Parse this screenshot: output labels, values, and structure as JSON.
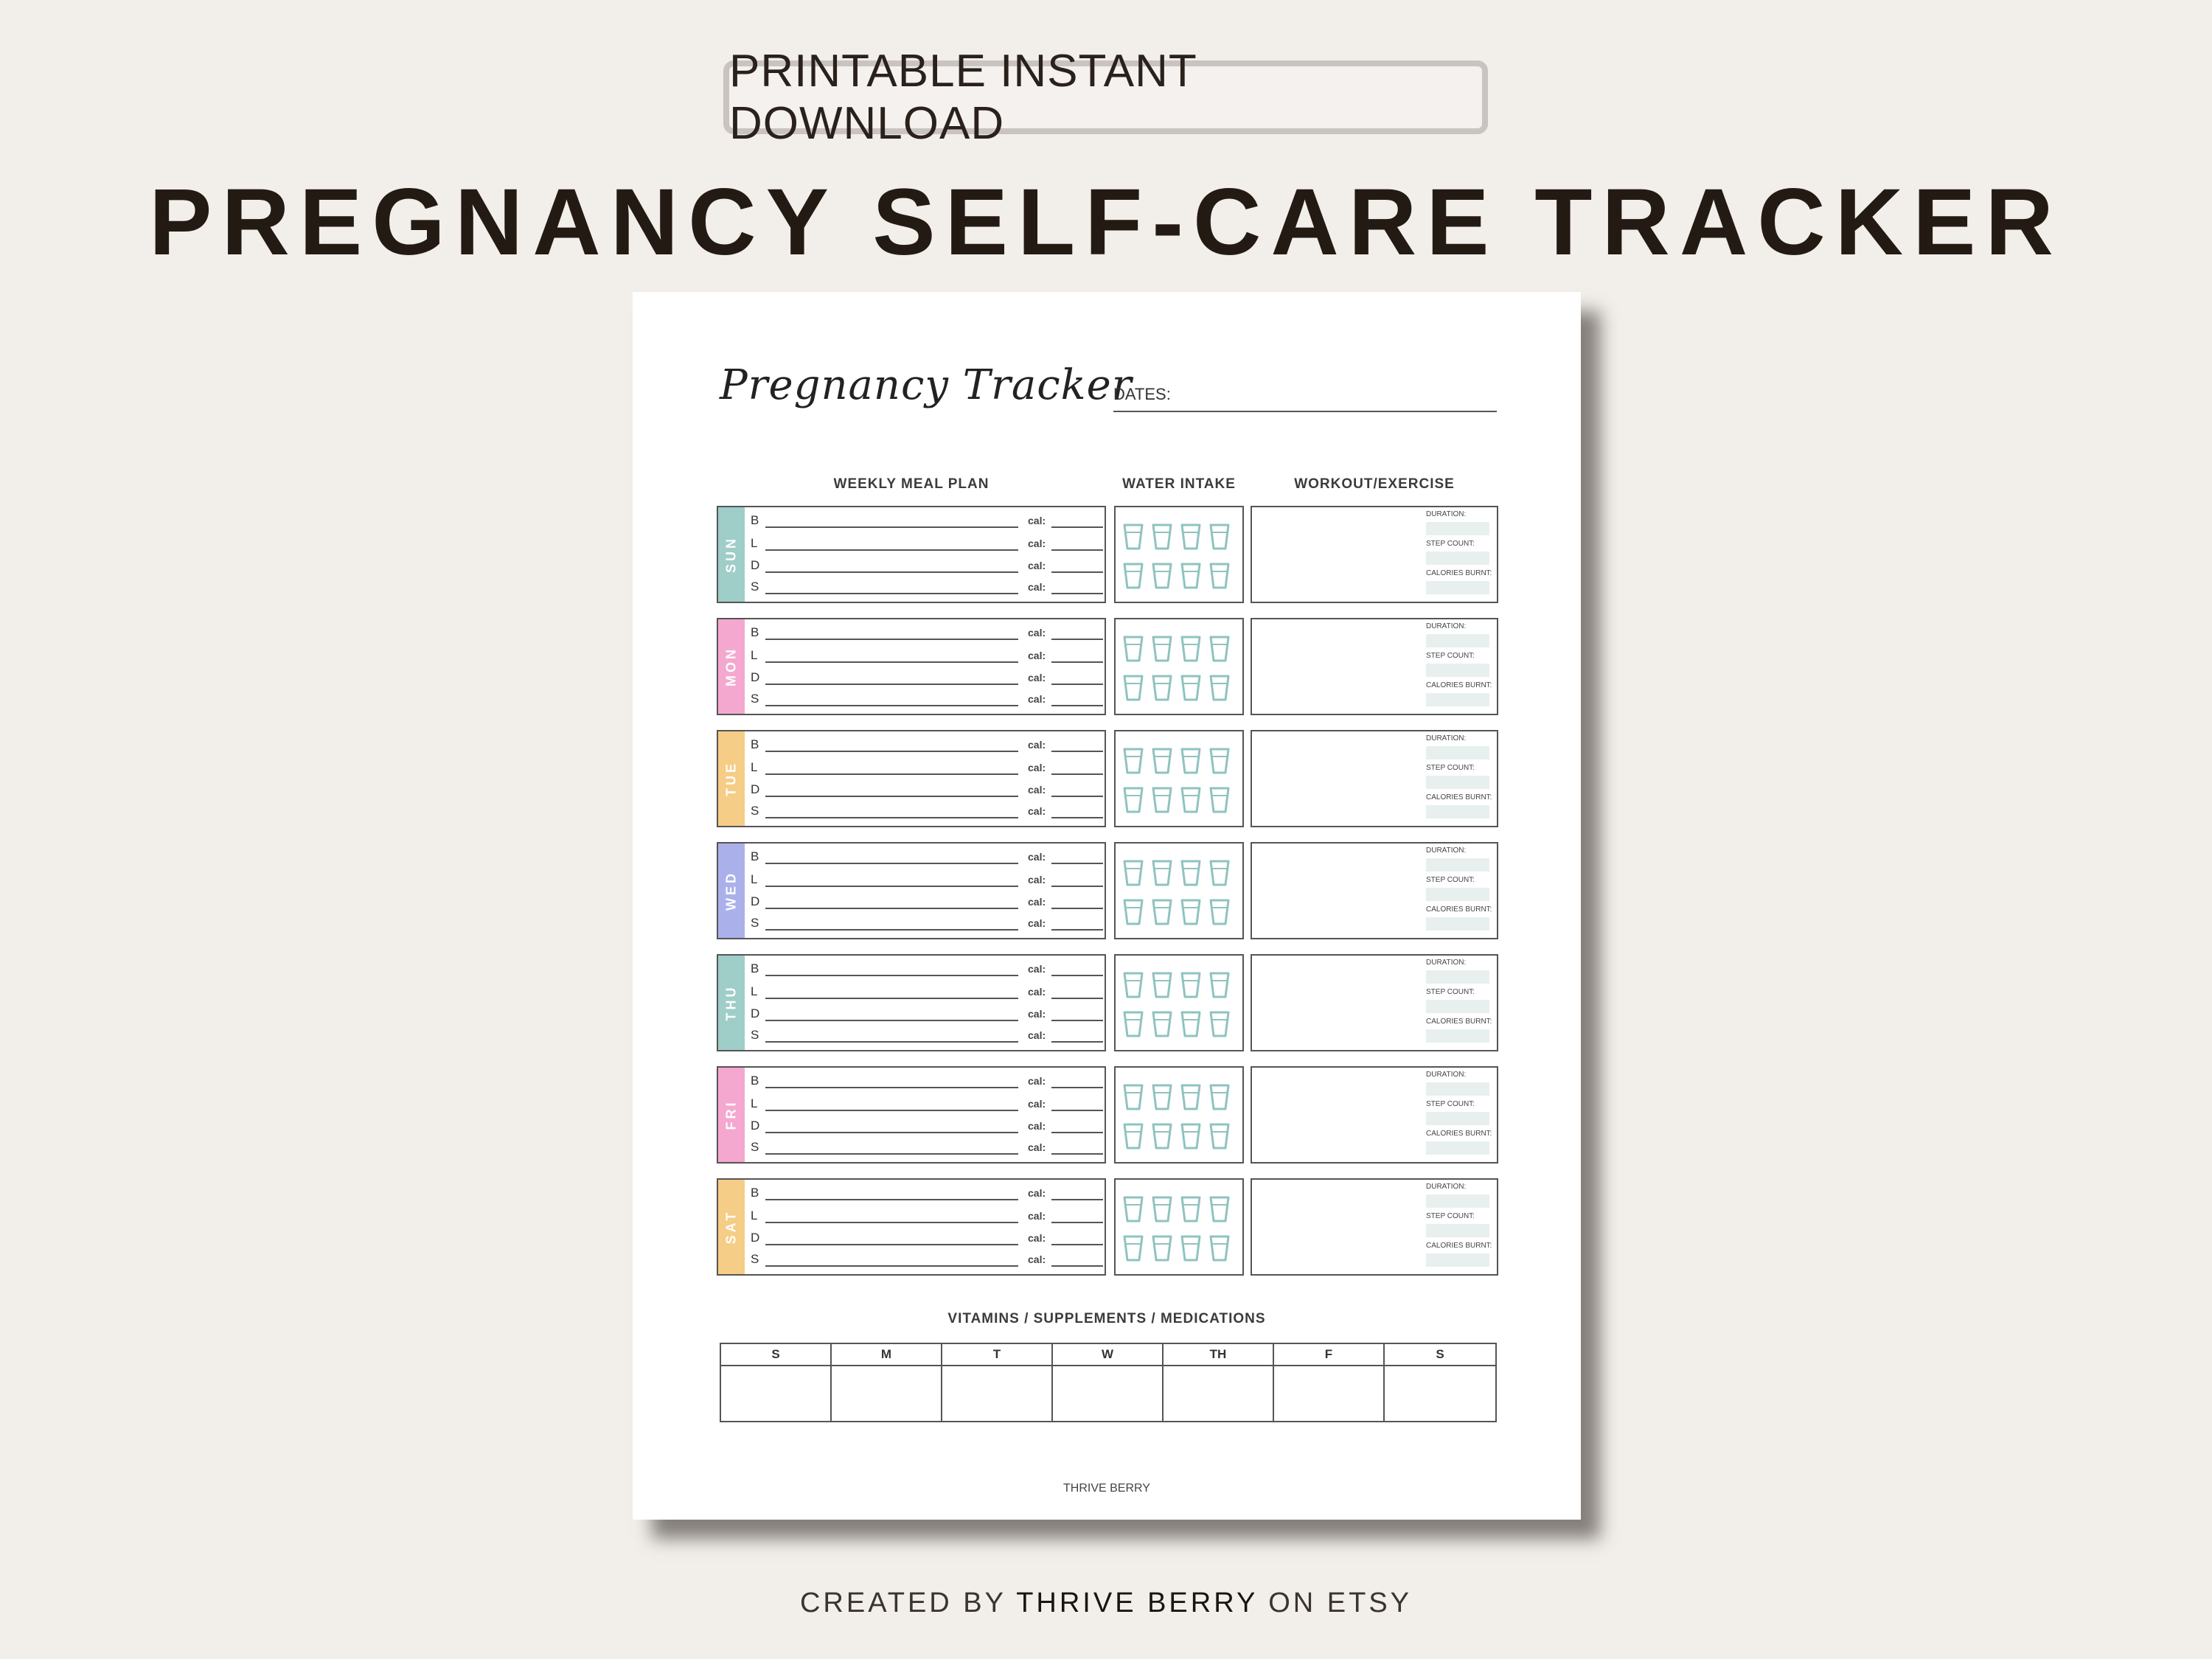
{
  "badge_text": "PRINTABLE INSTANT DOWNLOAD",
  "main_title": "PREGNANCY SELF-CARE TRACKER",
  "footer": {
    "prefix": "CREATED BY",
    "brand": "THRIVE BERRY",
    "suffix": "ON ETSY"
  },
  "tracker": {
    "script_title": "Pregnancy Tracker",
    "dates_label": "DATES:",
    "columns": {
      "meal": "WEEKLY MEAL PLAN",
      "water": "WATER INTAKE",
      "workout": "WORKOUT/EXERCISE"
    },
    "meal_letters": [
      "B",
      "L",
      "D",
      "S"
    ],
    "cal_label": "cal:",
    "workout_labels": [
      "DURATION:",
      "STEP COUNT:",
      "CALORIES BURNT:"
    ],
    "days": [
      {
        "label": "SUN",
        "color": "#9fcdc8"
      },
      {
        "label": "MON",
        "color": "#f4a8cf"
      },
      {
        "label": "TUE",
        "color": "#f6cd86"
      },
      {
        "label": "WED",
        "color": "#aab1ea"
      },
      {
        "label": "THU",
        "color": "#9fcdc8"
      },
      {
        "label": "FRI",
        "color": "#f4a8cf"
      },
      {
        "label": "SAT",
        "color": "#f6cd86"
      }
    ],
    "water_cups_per_day": 8,
    "cup_color": "#8fc3c0",
    "vitamins_title": "VITAMINS / SUPPLEMENTS / MEDICATIONS",
    "vitamin_days": [
      "S",
      "M",
      "T",
      "W",
      "TH",
      "F",
      "S"
    ],
    "brand": "THRIVE BERRY"
  }
}
